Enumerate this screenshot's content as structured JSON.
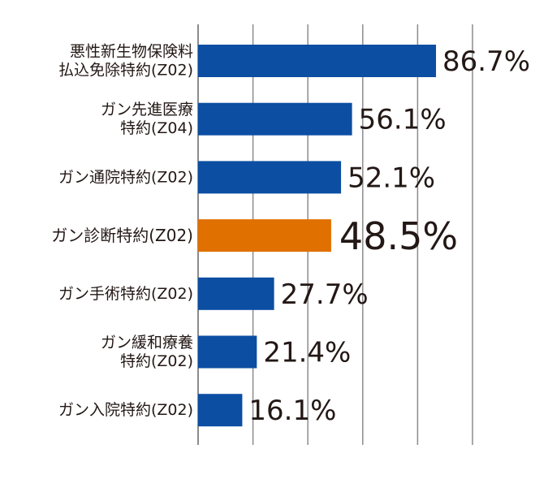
{
  "chart_data": {
    "type": "bar",
    "orientation": "horizontal",
    "categories": [
      [
        "悪性新生物保険料",
        "払込免除特約(Z02)"
      ],
      [
        "ガン先進医療",
        "特約(Z04)"
      ],
      [
        "ガン通院特約(Z02)"
      ],
      [
        "ガン診断特約(Z02)"
      ],
      [
        "ガン手術特約(Z02)"
      ],
      [
        "ガン緩和療養",
        "特約(Z02)"
      ],
      [
        "ガン入院特約(Z02)"
      ]
    ],
    "values": [
      86.7,
      56.1,
      52.1,
      48.5,
      27.7,
      21.4,
      16.1
    ],
    "value_labels": [
      "86.7%",
      "56.1%",
      "52.1%",
      "48.5%",
      "27.7%",
      "21.4%",
      "16.1%"
    ],
    "highlight_index": 3,
    "xlim": [
      0,
      100
    ],
    "x_grid_step": 20,
    "grid": true,
    "colors": {
      "bar": "#0b4ea2",
      "highlight": "#e07000",
      "text": "#231815",
      "grid": "#8c8c8c"
    }
  }
}
